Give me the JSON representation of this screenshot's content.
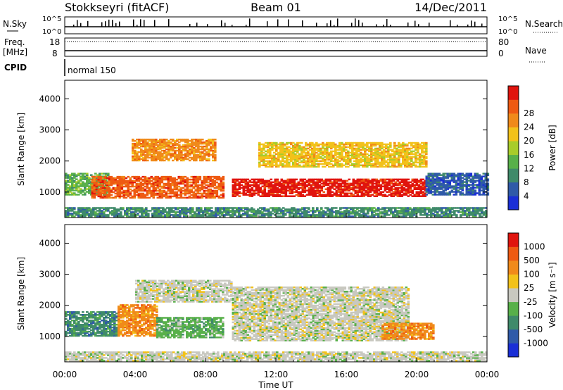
{
  "header": {
    "station": "Stokkseyri (fitACF)",
    "beam": "Beam 01",
    "date": "14/Dec/2011"
  },
  "status_panels": {
    "nsky_label": "N.Sky",
    "nsky_ticks": [
      "10^5",
      "10^0"
    ],
    "nsearch_label": "N.Search",
    "nsearch_ticks": [
      "10^5",
      "10^0"
    ],
    "freq_label": "Freq.",
    "freq_unit": "[MHz]",
    "freq_ticks": [
      "18",
      "8"
    ],
    "nave_label": "Nave",
    "nave_ticks": [
      "80",
      "0"
    ],
    "cpid_label": "CPID",
    "cpid_value": "normal 150"
  },
  "colors": {
    "power_scale": [
      "#1a2fd6",
      "#2f5aa8",
      "#3f8a6a",
      "#58b04a",
      "#a8cc2a",
      "#f2c21a",
      "#f08a1a",
      "#ee5a12",
      "#e0140e"
    ],
    "velocity_scale": [
      "#1a2fd6",
      "#2f5aa8",
      "#3f8a6a",
      "#58b04a",
      "#c8c8c0",
      "#f2c21a",
      "#f08a1a",
      "#ee5a12",
      "#e0140e"
    ],
    "ground_scatter": "#c8c8c0"
  },
  "chart_data": [
    {
      "type": "heatmap",
      "name": "power",
      "ylabel": "Slant Range [km]",
      "xlabel": "",
      "ylim": [
        180,
        4600
      ],
      "xlim": [
        0,
        24
      ],
      "yticks": [
        "1000",
        "2000",
        "3000",
        "4000"
      ],
      "colorbar_label": "Power [dB]",
      "colorbar_ticks": [
        "4",
        "8",
        "12",
        "16",
        "20",
        "24",
        "28"
      ],
      "regions": [
        {
          "x": [
            0.0,
            2.5
          ],
          "y": [
            900,
            1600
          ],
          "level": 3
        },
        {
          "x": [
            1.5,
            9.0
          ],
          "y": [
            800,
            1500
          ],
          "level": 7
        },
        {
          "x": [
            3.8,
            8.5
          ],
          "y": [
            2000,
            2700
          ],
          "level": 6
        },
        {
          "x": [
            9.5,
            20.5
          ],
          "y": [
            850,
            1400
          ],
          "level": 8
        },
        {
          "x": [
            11.0,
            20.5
          ],
          "y": [
            1800,
            2600
          ],
          "level": 5
        },
        {
          "x": [
            0.0,
            24.0
          ],
          "y": [
            200,
            500
          ],
          "level": 2
        },
        {
          "x": [
            20.5,
            24.0
          ],
          "y": [
            900,
            1600
          ],
          "level": 1
        }
      ]
    },
    {
      "type": "heatmap",
      "name": "velocity",
      "ylabel": "Slant Range [km]",
      "xlabel": "Time UT",
      "ylim": [
        180,
        4600
      ],
      "xlim": [
        0,
        24
      ],
      "yticks": [
        "1000",
        "2000",
        "3000",
        "4000"
      ],
      "xticks": [
        "00:00",
        "04:00",
        "08:00",
        "12:00",
        "16:00",
        "20:00",
        "00:00"
      ],
      "colorbar_label": "Velocity [m s⁻¹]",
      "colorbar_ticks": [
        "1000",
        "500",
        "100",
        "25",
        "-25",
        "-100",
        "-500",
        "-1000"
      ],
      "regions": [
        {
          "x": [
            0.0,
            3.0
          ],
          "y": [
            1000,
            1800
          ],
          "level": 2
        },
        {
          "x": [
            3.0,
            5.2
          ],
          "y": [
            1000,
            2000
          ],
          "level": 6
        },
        {
          "x": [
            5.2,
            9.0
          ],
          "y": [
            950,
            1600
          ],
          "level": 3
        },
        {
          "x": [
            4.0,
            9.5
          ],
          "y": [
            2100,
            2800
          ],
          "level": 4
        },
        {
          "x": [
            9.5,
            19.5
          ],
          "y": [
            850,
            2600
          ],
          "level": 4
        },
        {
          "x": [
            18.0,
            21.0
          ],
          "y": [
            900,
            1400
          ],
          "level": 6
        },
        {
          "x": [
            0.0,
            24.0
          ],
          "y": [
            200,
            500
          ],
          "level": 4
        }
      ]
    }
  ]
}
